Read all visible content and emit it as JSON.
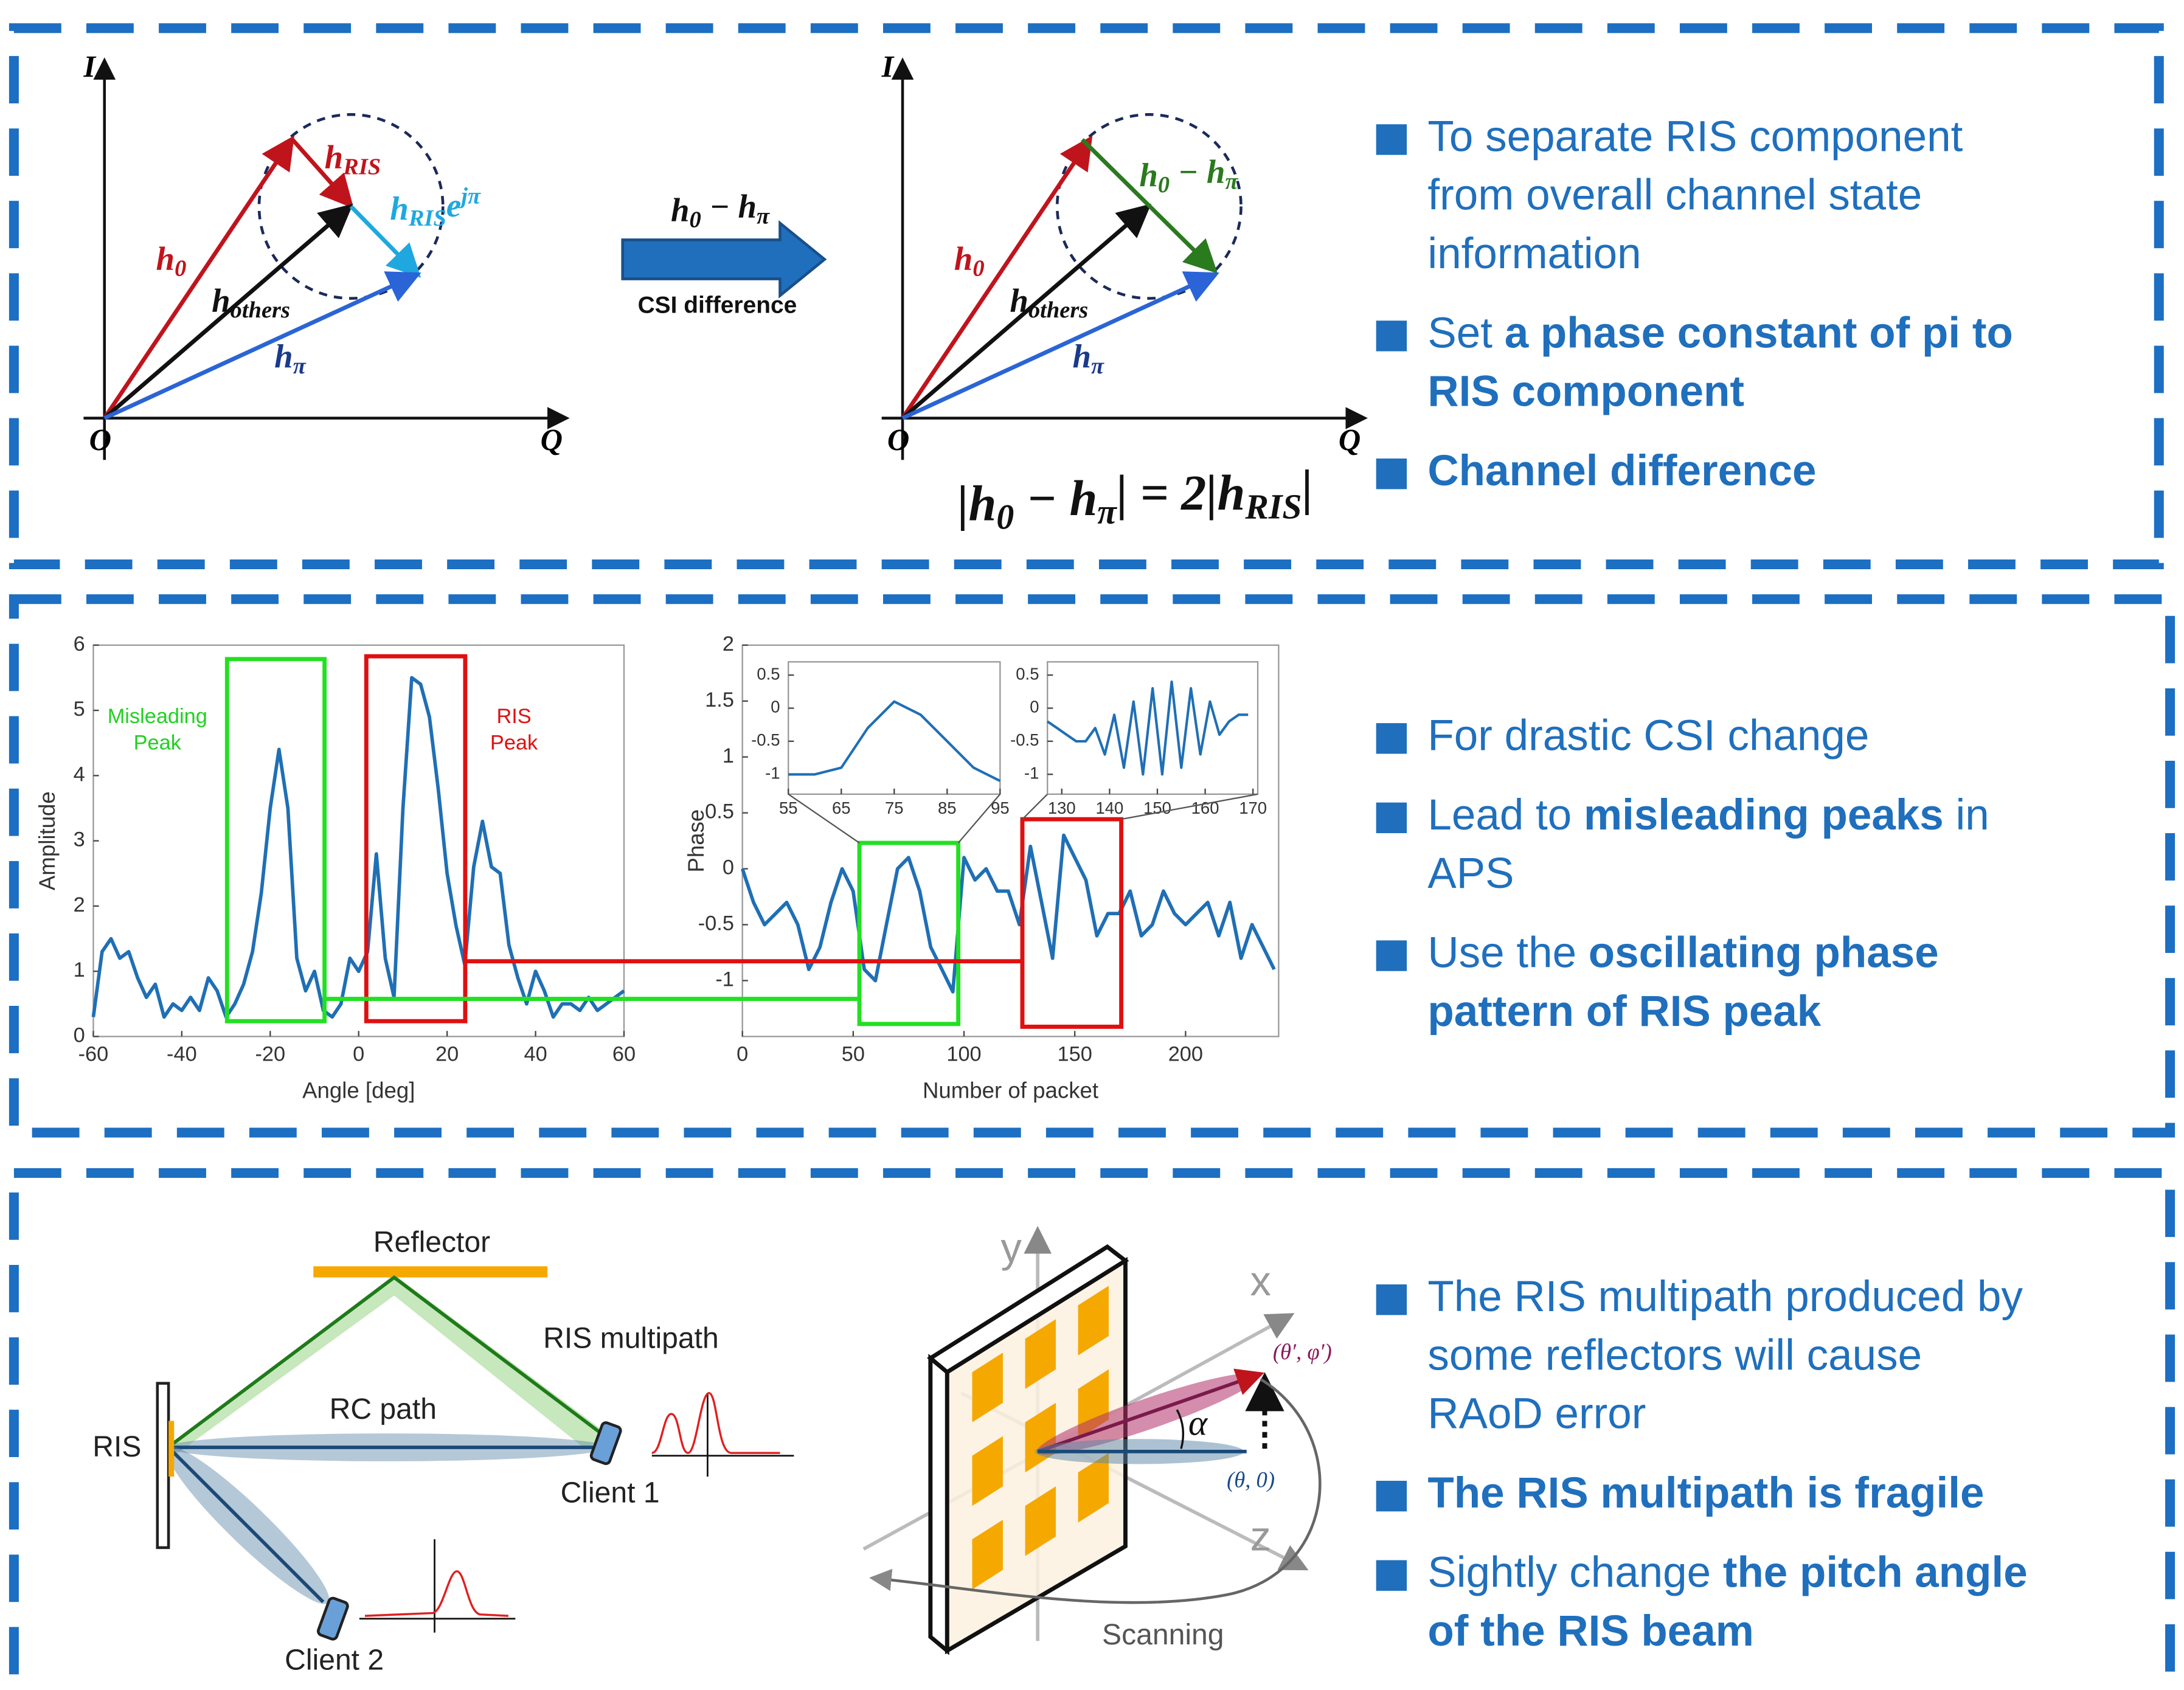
{
  "panel1": {
    "left": {
      "axis_i": "I",
      "axis_q": "Q",
      "origin": "O",
      "h0": [
        {
          "t": "h"
        },
        {
          "s": "0"
        }
      ],
      "h_ris": [
        {
          "t": "h"
        },
        {
          "s": "RIS"
        }
      ],
      "h_ris_pi": [
        {
          "t": "h"
        },
        {
          "s": "RIS"
        },
        {
          "t": "e"
        },
        {
          "p": "jπ"
        }
      ],
      "h_others": [
        {
          "t": "h"
        },
        {
          "s": "others"
        }
      ],
      "h_pi": [
        {
          "t": "h"
        },
        {
          "s": "π"
        }
      ]
    },
    "arrow": {
      "formula": [
        {
          "t": "h"
        },
        {
          "s": "0"
        },
        {
          "t": " − h"
        },
        {
          "s": "π"
        }
      ],
      "label": "CSI difference"
    },
    "right": {
      "axis_i": "I",
      "axis_q": "Q",
      "origin": "O",
      "h0": [
        {
          "t": "h"
        },
        {
          "s": "0"
        }
      ],
      "diff": [
        {
          "t": "h"
        },
        {
          "s": "0"
        },
        {
          "t": " − h"
        },
        {
          "s": "π"
        }
      ],
      "h_others": [
        {
          "t": "h"
        },
        {
          "s": "others"
        }
      ],
      "h_pi": [
        {
          "t": "h"
        },
        {
          "s": "π"
        }
      ]
    },
    "equation": [
      {
        "t": "|h"
      },
      {
        "s": "0"
      },
      {
        "t": " − h"
      },
      {
        "s": "π"
      },
      {
        "t": "| = 2|h"
      },
      {
        "s": "RIS"
      },
      {
        "t": "|"
      }
    ],
    "bullets": [
      {
        "lines": [
          [
            {
              "text": "To separate RIS component"
            }
          ],
          [
            {
              "text": "from overall channel state"
            }
          ],
          [
            {
              "text": "information"
            }
          ]
        ]
      },
      {
        "lines": [
          [
            {
              "text": "Set "
            },
            {
              "text": "a phase constant of pi to",
              "bold": true
            }
          ],
          [
            {
              "text": "RIS component",
              "bold": true
            }
          ]
        ]
      },
      {
        "lines": [
          [
            {
              "text": "Channel difference",
              "bold": true
            }
          ]
        ]
      }
    ]
  },
  "panel2": {
    "amplitude_chart": {
      "type": "line",
      "xlabel": "Angle [deg]",
      "ylabel": "Amplitude",
      "color": "#1f6fb5",
      "xlim": [
        -60,
        60
      ],
      "xticks": [
        -60,
        -40,
        -20,
        0,
        20,
        40,
        60
      ],
      "ylim": [
        0,
        6
      ],
      "yticks": [
        0,
        1,
        2,
        3,
        4,
        5,
        6
      ],
      "x": [
        -60,
        -58,
        -56,
        -54,
        -52,
        -50,
        -48,
        -46,
        -44,
        -42,
        -40,
        -38,
        -36,
        -34,
        -32,
        -30,
        -28,
        -26,
        -24,
        -22,
        -20,
        -18,
        -16,
        -14,
        -12,
        -10,
        -8,
        -6,
        -4,
        -2,
        0,
        2,
        4,
        6,
        8,
        10,
        12,
        14,
        16,
        18,
        20,
        22,
        24,
        26,
        28,
        30,
        32,
        34,
        36,
        38,
        40,
        42,
        44,
        46,
        48,
        50,
        52,
        54,
        56,
        58,
        60
      ],
      "values": [
        0.3,
        1.3,
        1.5,
        1.2,
        1.3,
        0.9,
        0.6,
        0.8,
        0.3,
        0.5,
        0.4,
        0.6,
        0.4,
        0.9,
        0.7,
        0.3,
        0.5,
        0.8,
        1.3,
        2.2,
        3.5,
        4.4,
        3.5,
        1.2,
        0.7,
        1.0,
        0.4,
        0.3,
        0.5,
        1.2,
        1.0,
        1.3,
        2.8,
        1.2,
        0.6,
        3.5,
        5.5,
        5.4,
        4.9,
        3.8,
        2.5,
        1.7,
        1.1,
        2.6,
        3.3,
        2.6,
        2.5,
        1.4,
        0.9,
        0.5,
        1.0,
        0.7,
        0.3,
        0.5,
        0.5,
        0.4,
        0.6,
        0.4,
        0.5,
        0.6,
        0.7
      ],
      "annotations": {
        "misleading": [
          "Misleading",
          "Peak"
        ],
        "ris": [
          "RIS",
          "Peak"
        ]
      }
    },
    "phase_chart": {
      "type": "line",
      "xlabel": "Number of packet",
      "ylabel": "Phase",
      "color": "#1f6fb5",
      "xlim": [
        0,
        242
      ],
      "xticks": [
        0,
        50,
        100,
        150,
        200
      ],
      "ylim": [
        -1.5,
        2
      ],
      "yticks": [
        -1,
        -0.5,
        0,
        0.5,
        1,
        1.5,
        2
      ],
      "x": [
        0,
        5,
        10,
        15,
        20,
        25,
        30,
        35,
        40,
        45,
        50,
        55,
        60,
        65,
        70,
        75,
        80,
        85,
        90,
        95,
        100,
        105,
        110,
        115,
        120,
        125,
        130,
        135,
        140,
        145,
        150,
        155,
        160,
        165,
        170,
        175,
        180,
        185,
        190,
        195,
        200,
        205,
        210,
        215,
        220,
        225,
        230,
        235,
        240
      ],
      "values": [
        0,
        -0.3,
        -0.5,
        -0.4,
        -0.3,
        -0.5,
        -0.9,
        -0.7,
        -0.3,
        0,
        -0.2,
        -0.9,
        -1.0,
        -0.5,
        0.0,
        0.1,
        -0.2,
        -0.7,
        -0.9,
        -1.1,
        0.1,
        -0.1,
        0,
        -0.2,
        -0.2,
        -0.5,
        0.2,
        -0.3,
        -0.8,
        0.3,
        0.1,
        -0.1,
        -0.6,
        -0.4,
        -0.4,
        -0.2,
        -0.6,
        -0.5,
        -0.2,
        -0.4,
        -0.5,
        -0.4,
        -0.3,
        -0.6,
        -0.3,
        -0.8,
        -0.5,
        -0.7,
        -0.9
      ],
      "insets": [
        {
          "type": "line",
          "color": "#1f6fb5",
          "xlim": [
            55,
            95
          ],
          "xticks": [
            55,
            65,
            75,
            85,
            95
          ],
          "ylim": [
            -1.3,
            0.7
          ],
          "yticks": [
            -1,
            -0.5,
            0,
            0.5
          ],
          "x": [
            55,
            60,
            65,
            70,
            75,
            80,
            85,
            90,
            95
          ],
          "values": [
            -1,
            -1,
            -0.9,
            -0.3,
            0.1,
            -0.1,
            -0.5,
            -0.9,
            -1.1
          ]
        },
        {
          "type": "line",
          "color": "#1f6fb5",
          "xlim": [
            127,
            171
          ],
          "xticks": [
            130,
            140,
            150,
            160,
            170
          ],
          "ylim": [
            -1.3,
            0.7
          ],
          "yticks": [
            -1,
            -0.5,
            0,
            0.5
          ],
          "x": [
            127,
            129,
            131,
            133,
            135,
            137,
            139,
            141,
            143,
            145,
            147,
            149,
            151,
            153,
            155,
            157,
            159,
            161,
            163,
            165,
            167,
            169
          ],
          "values": [
            -0.2,
            -0.3,
            -0.4,
            -0.5,
            -0.5,
            -0.3,
            -0.7,
            -0.1,
            -0.9,
            0.1,
            -1.0,
            0.3,
            -1.0,
            0.4,
            -0.9,
            0.3,
            -0.7,
            0.1,
            -0.4,
            -0.2,
            -0.1,
            -0.1
          ]
        }
      ]
    },
    "bullets": [
      {
        "lines": [
          [
            {
              "text": "For drastic CSI change"
            }
          ]
        ]
      },
      {
        "lines": [
          [
            {
              "text": "Lead to "
            },
            {
              "text": "misleading peaks",
              "bold": true
            },
            {
              "text": " in"
            }
          ],
          [
            {
              "text": "APS"
            }
          ]
        ]
      },
      {
        "lines": [
          [
            {
              "text": "Use the "
            },
            {
              "text": "oscillating phase",
              "bold": true
            }
          ],
          [
            {
              "text": "pattern of RIS peak",
              "bold": true
            }
          ]
        ]
      }
    ]
  },
  "panel3": {
    "labels": {
      "reflector": "Reflector",
      "ris_multipath": "RIS multipath",
      "rc_path": "RC path",
      "ris": "RIS",
      "client1": "Client 1",
      "client2": "Client 2",
      "y": "y",
      "x": "x",
      "z": "z",
      "alpha": "α",
      "target": "(θ′, φ′)",
      "origin": "(θ, 0)",
      "scanning": "Scanning"
    },
    "bullets": [
      {
        "lines": [
          [
            {
              "text": "The RIS multipath produced by"
            }
          ],
          [
            {
              "text": "some reflectors will cause"
            }
          ],
          [
            {
              "text": "RAoD error"
            }
          ]
        ]
      },
      {
        "lines": [
          [
            {
              "text": "The RIS multipath is fragile",
              "bold": true
            }
          ]
        ]
      },
      {
        "lines": [
          [
            {
              "text": "Sightly change "
            },
            {
              "text": "the pitch angle",
              "bold": true
            }
          ],
          [
            {
              "text": "of the RIS beam",
              "bold": true
            }
          ]
        ]
      }
    ]
  }
}
